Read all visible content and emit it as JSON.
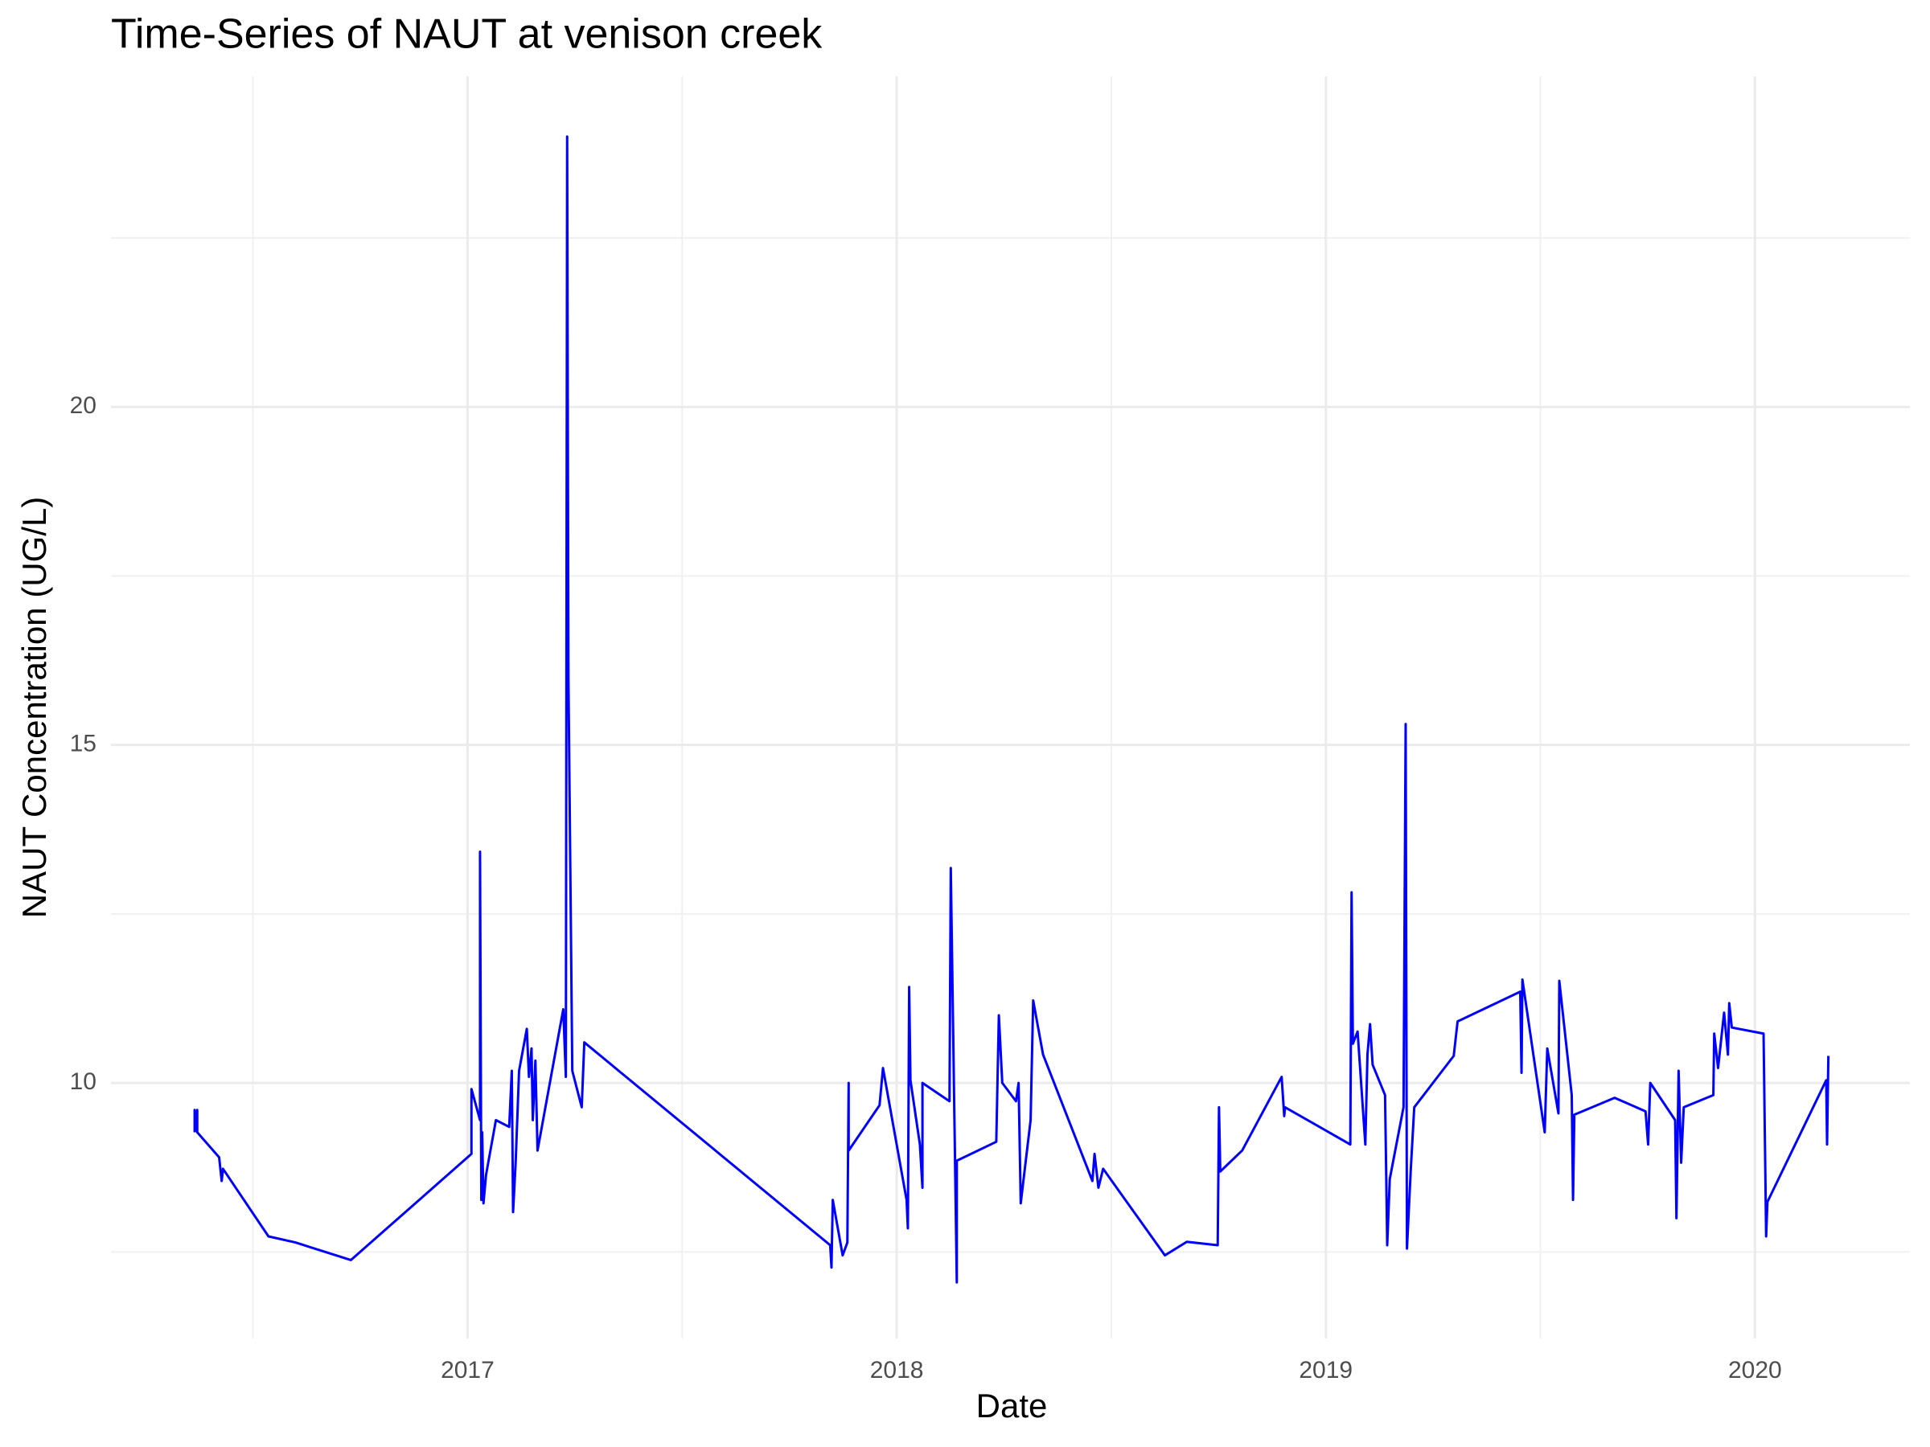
{
  "chart_data": {
    "type": "line",
    "title": "Time-Series of NAUT at venison creek",
    "x_label": "Date",
    "y_label": "NAUT Concentration (UG/L)",
    "color": "#0000ff",
    "grid": true,
    "xlim": [
      2016.169,
      2020.361
    ],
    "ylim": [
      6.22,
      24.89
    ],
    "xticks": [
      2017,
      2018,
      2019,
      2020
    ],
    "yticks": [
      10,
      15,
      20
    ],
    "xminorticks": [
      2016.5,
      2017.5,
      2018.5,
      2019.5
    ],
    "yminorticks": [
      7.5,
      12.5,
      17.5,
      22.5
    ],
    "x": [
      2016.364,
      2016.364,
      2016.37,
      2016.37,
      2016.37,
      2016.421,
      2016.427,
      2016.43,
      2016.536,
      2016.599,
      2016.728,
      2017.009,
      2017.009,
      2017.029,
      2017.029,
      2017.032,
      2017.034,
      2017.037,
      2017.043,
      2017.066,
      2017.097,
      2017.103,
      2017.106,
      2017.112,
      2017.12,
      2017.138,
      2017.143,
      2017.149,
      2017.152,
      2017.158,
      2017.163,
      2017.223,
      2017.229,
      2017.232,
      2017.235,
      2017.244,
      2017.266,
      2017.272,
      2017.845,
      2017.848,
      2017.851,
      2017.874,
      2017.885,
      2017.888,
      2017.888,
      2017.96,
      2017.968,
      2018.023,
      2018.026,
      2018.029,
      2018.032,
      2018.054,
      2018.06,
      2018.06,
      2018.123,
      2018.126,
      2018.14,
      2018.14,
      2018.232,
      2018.238,
      2018.246,
      2018.278,
      2018.284,
      2018.289,
      2018.312,
      2018.318,
      2018.341,
      2018.456,
      2018.461,
      2018.47,
      2018.481,
      2018.625,
      2018.676,
      2018.748,
      2018.751,
      2018.754,
      2018.805,
      2018.897,
      2018.903,
      2018.905,
      2019.057,
      2019.06,
      2019.063,
      2019.074,
      2019.092,
      2019.097,
      2019.103,
      2019.109,
      2019.138,
      2019.143,
      2019.149,
      2019.181,
      2019.186,
      2019.189,
      2019.198,
      2019.206,
      2019.298,
      2019.307,
      2019.453,
      2019.456,
      2019.458,
      2019.51,
      2019.516,
      2019.542,
      2019.544,
      2019.573,
      2019.576,
      2019.579,
      2019.673,
      2019.745,
      2019.751,
      2019.756,
      2019.814,
      2019.817,
      2019.822,
      2019.828,
      2019.834,
      2019.903,
      2019.905,
      2019.914,
      2019.928,
      2019.937,
      2019.94,
      2019.946,
      2020.02,
      2020.026,
      2020.029,
      2020.166,
      2020.168,
      2020.171
    ],
    "values": [
      9.27,
      9.6,
      9.27,
      9.6,
      9.27,
      8.9,
      8.55,
      8.73,
      7.73,
      7.64,
      7.38,
      8.95,
      9.91,
      9.45,
      13.42,
      8.27,
      9.27,
      8.22,
      8.64,
      9.45,
      9.35,
      10.18,
      8.09,
      8.82,
      10.18,
      10.8,
      10.09,
      10.51,
      9.45,
      10.33,
      9.0,
      11.09,
      10.09,
      24.0,
      16.0,
      10.18,
      9.64,
      10.6,
      7.6,
      7.27,
      8.27,
      7.45,
      7.64,
      10.0,
      9.0,
      9.67,
      10.22,
      8.27,
      7.85,
      11.42,
      10.04,
      9.09,
      8.45,
      10.0,
      9.73,
      13.18,
      7.05,
      8.85,
      9.13,
      11.0,
      10.0,
      9.73,
      10.0,
      8.22,
      9.45,
      11.22,
      10.42,
      8.55,
      8.95,
      8.45,
      8.73,
      7.45,
      7.65,
      7.6,
      9.64,
      8.69,
      9.0,
      10.09,
      9.51,
      9.64,
      9.09,
      12.82,
      10.58,
      10.76,
      9.09,
      10.42,
      10.87,
      10.27,
      9.82,
      7.6,
      8.58,
      9.64,
      15.31,
      7.55,
      8.73,
      9.64,
      10.4,
      10.91,
      11.35,
      10.15,
      11.53,
      9.27,
      10.51,
      9.55,
      11.51,
      9.82,
      8.27,
      9.53,
      9.78,
      9.58,
      9.09,
      10.0,
      9.45,
      8.0,
      10.18,
      8.82,
      9.64,
      9.82,
      10.73,
      10.22,
      11.04,
      10.42,
      11.18,
      10.82,
      10.73,
      7.73,
      8.24,
      10.04,
      9.09,
      10.4
    ]
  }
}
